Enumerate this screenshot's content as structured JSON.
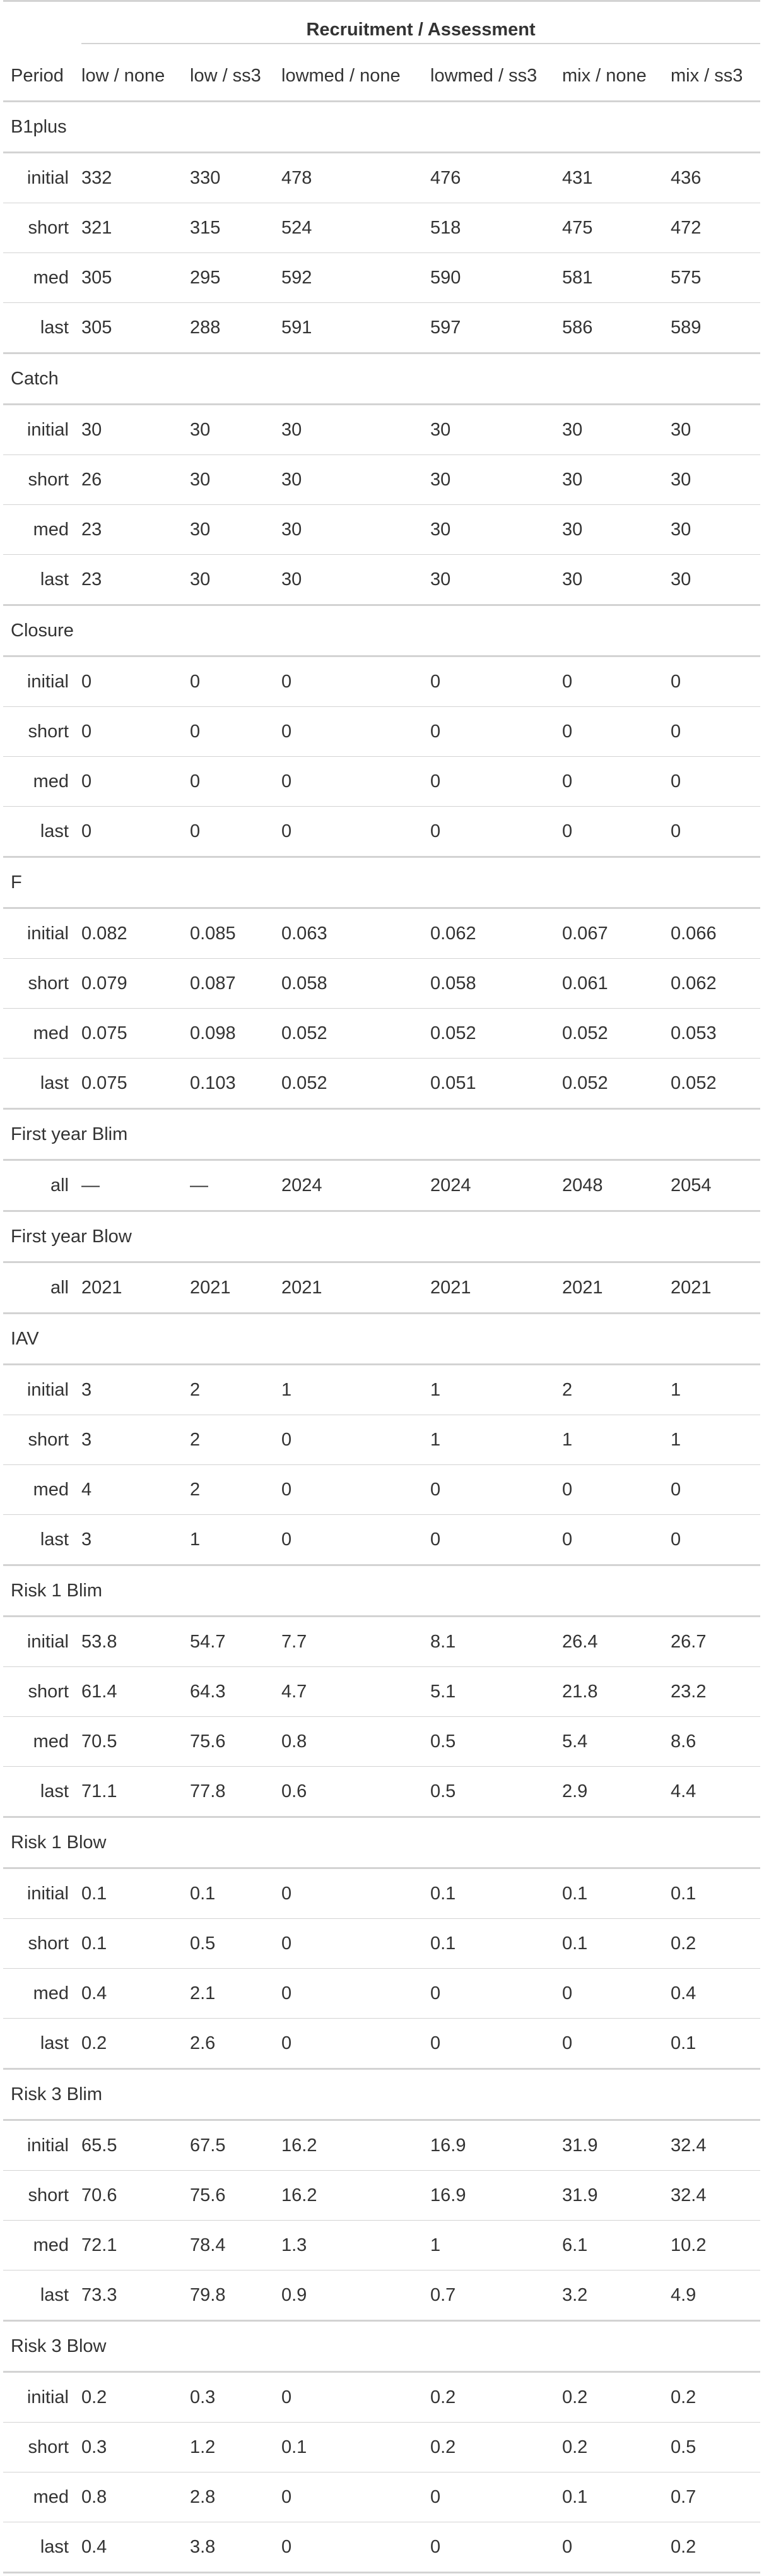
{
  "header": {
    "spanner_label": "Recruitment / Assessment",
    "period_label": "Period",
    "columns": [
      "low / none",
      "low / ss3",
      "lowmed / none",
      "lowmed / ss3",
      "mix / none",
      "mix / ss3"
    ]
  },
  "groups": [
    {
      "name": "B1plus",
      "rows": [
        {
          "period": "initial",
          "values": [
            "332",
            "330",
            "478",
            "476",
            "431",
            "436"
          ]
        },
        {
          "period": "short",
          "values": [
            "321",
            "315",
            "524",
            "518",
            "475",
            "472"
          ]
        },
        {
          "period": "med",
          "values": [
            "305",
            "295",
            "592",
            "590",
            "581",
            "575"
          ]
        },
        {
          "period": "last",
          "values": [
            "305",
            "288",
            "591",
            "597",
            "586",
            "589"
          ]
        }
      ]
    },
    {
      "name": "Catch",
      "rows": [
        {
          "period": "initial",
          "values": [
            "30",
            "30",
            "30",
            "30",
            "30",
            "30"
          ]
        },
        {
          "period": "short",
          "values": [
            "26",
            "30",
            "30",
            "30",
            "30",
            "30"
          ]
        },
        {
          "period": "med",
          "values": [
            "23",
            "30",
            "30",
            "30",
            "30",
            "30"
          ]
        },
        {
          "period": "last",
          "values": [
            "23",
            "30",
            "30",
            "30",
            "30",
            "30"
          ]
        }
      ]
    },
    {
      "name": "Closure",
      "rows": [
        {
          "period": "initial",
          "values": [
            "0",
            "0",
            "0",
            "0",
            "0",
            "0"
          ]
        },
        {
          "period": "short",
          "values": [
            "0",
            "0",
            "0",
            "0",
            "0",
            "0"
          ]
        },
        {
          "period": "med",
          "values": [
            "0",
            "0",
            "0",
            "0",
            "0",
            "0"
          ]
        },
        {
          "period": "last",
          "values": [
            "0",
            "0",
            "0",
            "0",
            "0",
            "0"
          ]
        }
      ]
    },
    {
      "name": "F",
      "rows": [
        {
          "period": "initial",
          "values": [
            "0.082",
            "0.085",
            "0.063",
            "0.062",
            "0.067",
            "0.066"
          ]
        },
        {
          "period": "short",
          "values": [
            "0.079",
            "0.087",
            "0.058",
            "0.058",
            "0.061",
            "0.062"
          ]
        },
        {
          "period": "med",
          "values": [
            "0.075",
            "0.098",
            "0.052",
            "0.052",
            "0.052",
            "0.053"
          ]
        },
        {
          "period": "last",
          "values": [
            "0.075",
            "0.103",
            "0.052",
            "0.051",
            "0.052",
            "0.052"
          ]
        }
      ]
    },
    {
      "name": "First year Blim",
      "rows": [
        {
          "period": "all",
          "values": [
            "—",
            "—",
            "2024",
            "2024",
            "2048",
            "2054"
          ]
        }
      ]
    },
    {
      "name": "First year Blow",
      "rows": [
        {
          "period": "all",
          "values": [
            "2021",
            "2021",
            "2021",
            "2021",
            "2021",
            "2021"
          ]
        }
      ]
    },
    {
      "name": "IAV",
      "rows": [
        {
          "period": "initial",
          "values": [
            "3",
            "2",
            "1",
            "1",
            "2",
            "1"
          ]
        },
        {
          "period": "short",
          "values": [
            "3",
            "2",
            "0",
            "1",
            "1",
            "1"
          ]
        },
        {
          "period": "med",
          "values": [
            "4",
            "2",
            "0",
            "0",
            "0",
            "0"
          ]
        },
        {
          "period": "last",
          "values": [
            "3",
            "1",
            "0",
            "0",
            "0",
            "0"
          ]
        }
      ]
    },
    {
      "name": "Risk 1 Blim",
      "rows": [
        {
          "period": "initial",
          "values": [
            "53.8",
            "54.7",
            "7.7",
            "8.1",
            "26.4",
            "26.7"
          ]
        },
        {
          "period": "short",
          "values": [
            "61.4",
            "64.3",
            "4.7",
            "5.1",
            "21.8",
            "23.2"
          ]
        },
        {
          "period": "med",
          "values": [
            "70.5",
            "75.6",
            "0.8",
            "0.5",
            "5.4",
            "8.6"
          ]
        },
        {
          "period": "last",
          "values": [
            "71.1",
            "77.8",
            "0.6",
            "0.5",
            "2.9",
            "4.4"
          ]
        }
      ]
    },
    {
      "name": "Risk 1 Blow",
      "rows": [
        {
          "period": "initial",
          "values": [
            "0.1",
            "0.1",
            "0",
            "0.1",
            "0.1",
            "0.1"
          ]
        },
        {
          "period": "short",
          "values": [
            "0.1",
            "0.5",
            "0",
            "0.1",
            "0.1",
            "0.2"
          ]
        },
        {
          "period": "med",
          "values": [
            "0.4",
            "2.1",
            "0",
            "0",
            "0",
            "0.4"
          ]
        },
        {
          "period": "last",
          "values": [
            "0.2",
            "2.6",
            "0",
            "0",
            "0",
            "0.1"
          ]
        }
      ]
    },
    {
      "name": "Risk 3 Blim",
      "rows": [
        {
          "period": "initial",
          "values": [
            "65.5",
            "67.5",
            "16.2",
            "16.9",
            "31.9",
            "32.4"
          ]
        },
        {
          "period": "short",
          "values": [
            "70.6",
            "75.6",
            "16.2",
            "16.9",
            "31.9",
            "32.4"
          ]
        },
        {
          "period": "med",
          "values": [
            "72.1",
            "78.4",
            "1.3",
            "1",
            "6.1",
            "10.2"
          ]
        },
        {
          "period": "last",
          "values": [
            "73.3",
            "79.8",
            "0.9",
            "0.7",
            "3.2",
            "4.9"
          ]
        }
      ]
    },
    {
      "name": "Risk 3 Blow",
      "rows": [
        {
          "period": "initial",
          "values": [
            "0.2",
            "0.3",
            "0",
            "0.2",
            "0.2",
            "0.2"
          ]
        },
        {
          "period": "short",
          "values": [
            "0.3",
            "1.2",
            "0.1",
            "0.2",
            "0.2",
            "0.5"
          ]
        },
        {
          "period": "med",
          "values": [
            "0.8",
            "2.8",
            "0",
            "0",
            "0.1",
            "0.7"
          ]
        },
        {
          "period": "last",
          "values": [
            "0.4",
            "3.8",
            "0",
            "0",
            "0",
            "0.2"
          ]
        }
      ]
    }
  ]
}
